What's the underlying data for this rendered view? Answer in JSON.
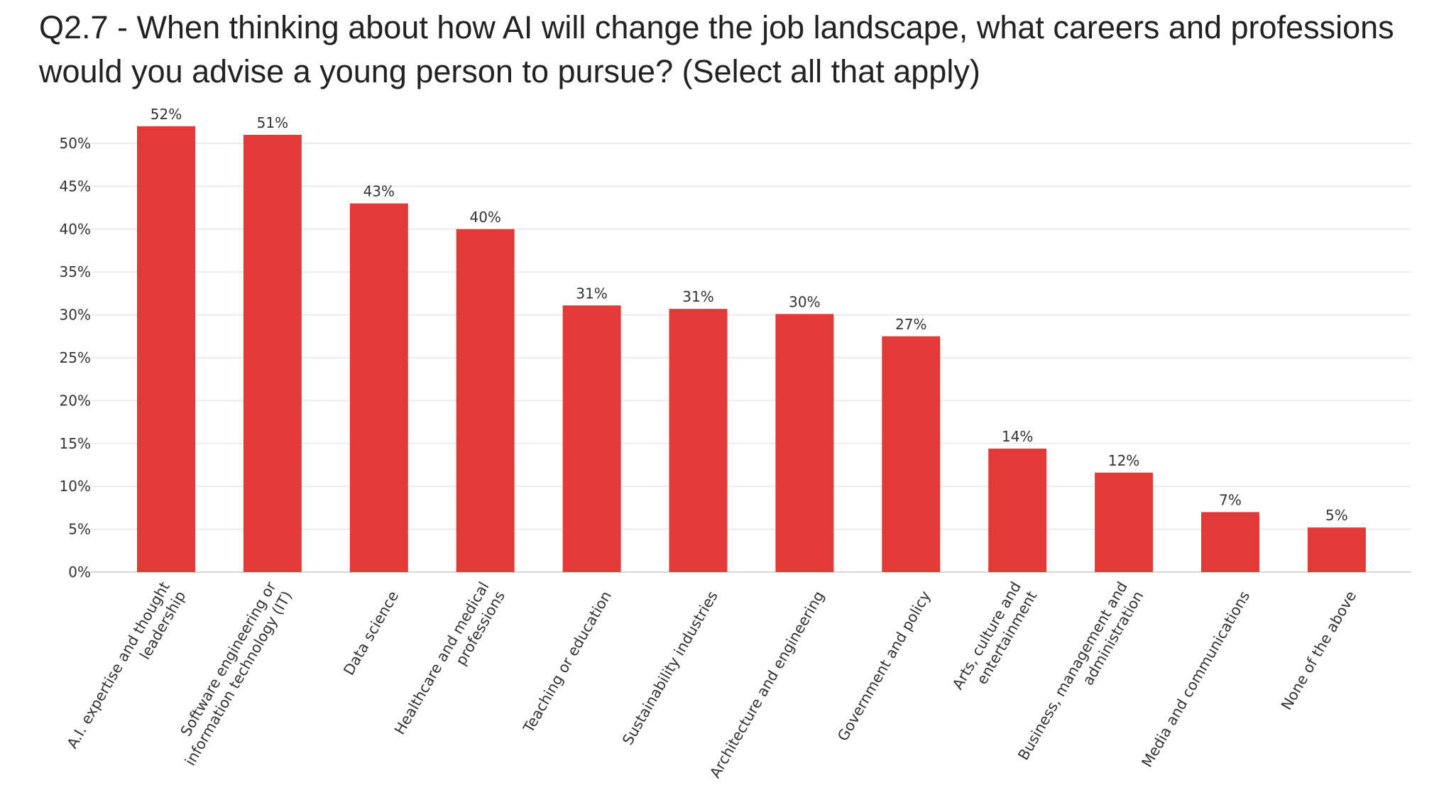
{
  "chart_data": {
    "type": "bar",
    "title": "Q2.7 - When thinking about how AI will change the job landscape, what careers and professions would you advise a young person to pursue? (Select all that apply)",
    "xlabel": "",
    "ylabel": "",
    "ylim": [
      0,
      52
    ],
    "yticks": [
      0,
      5,
      10,
      15,
      20,
      25,
      30,
      35,
      40,
      45,
      50
    ],
    "ytick_labels": [
      "0%",
      "5%",
      "10%",
      "15%",
      "20%",
      "25%",
      "30%",
      "35%",
      "40%",
      "45%",
      "50%"
    ],
    "grid": true,
    "legend": "none",
    "bar_color": "#e23a36",
    "categories": [
      [
        "A.I. expertise and thought",
        "leadership"
      ],
      [
        "Software engineering or",
        "information technology (IT)"
      ],
      [
        "Data science"
      ],
      [
        "Healthcare and medical",
        "professions"
      ],
      [
        "Teaching or education"
      ],
      [
        "Sustainability industries"
      ],
      [
        "Architecture and engineering"
      ],
      [
        "Government and policy"
      ],
      [
        "Arts, culture and",
        "entertainment"
      ],
      [
        "Business, management and",
        "administration"
      ],
      [
        "Media and communications"
      ],
      [
        "None of the above"
      ]
    ],
    "values": [
      52,
      51,
      43,
      40,
      31,
      31,
      30,
      27,
      14,
      12,
      7,
      5
    ],
    "bar_heights": [
      52,
      51,
      43,
      40,
      31.1,
      30.7,
      30.1,
      27.5,
      14.4,
      11.6,
      7,
      5.2
    ],
    "data_labels": [
      "52%",
      "51%",
      "43%",
      "40%",
      "31%",
      "31%",
      "30%",
      "27%",
      "14%",
      "12%",
      "7%",
      "5%"
    ]
  }
}
